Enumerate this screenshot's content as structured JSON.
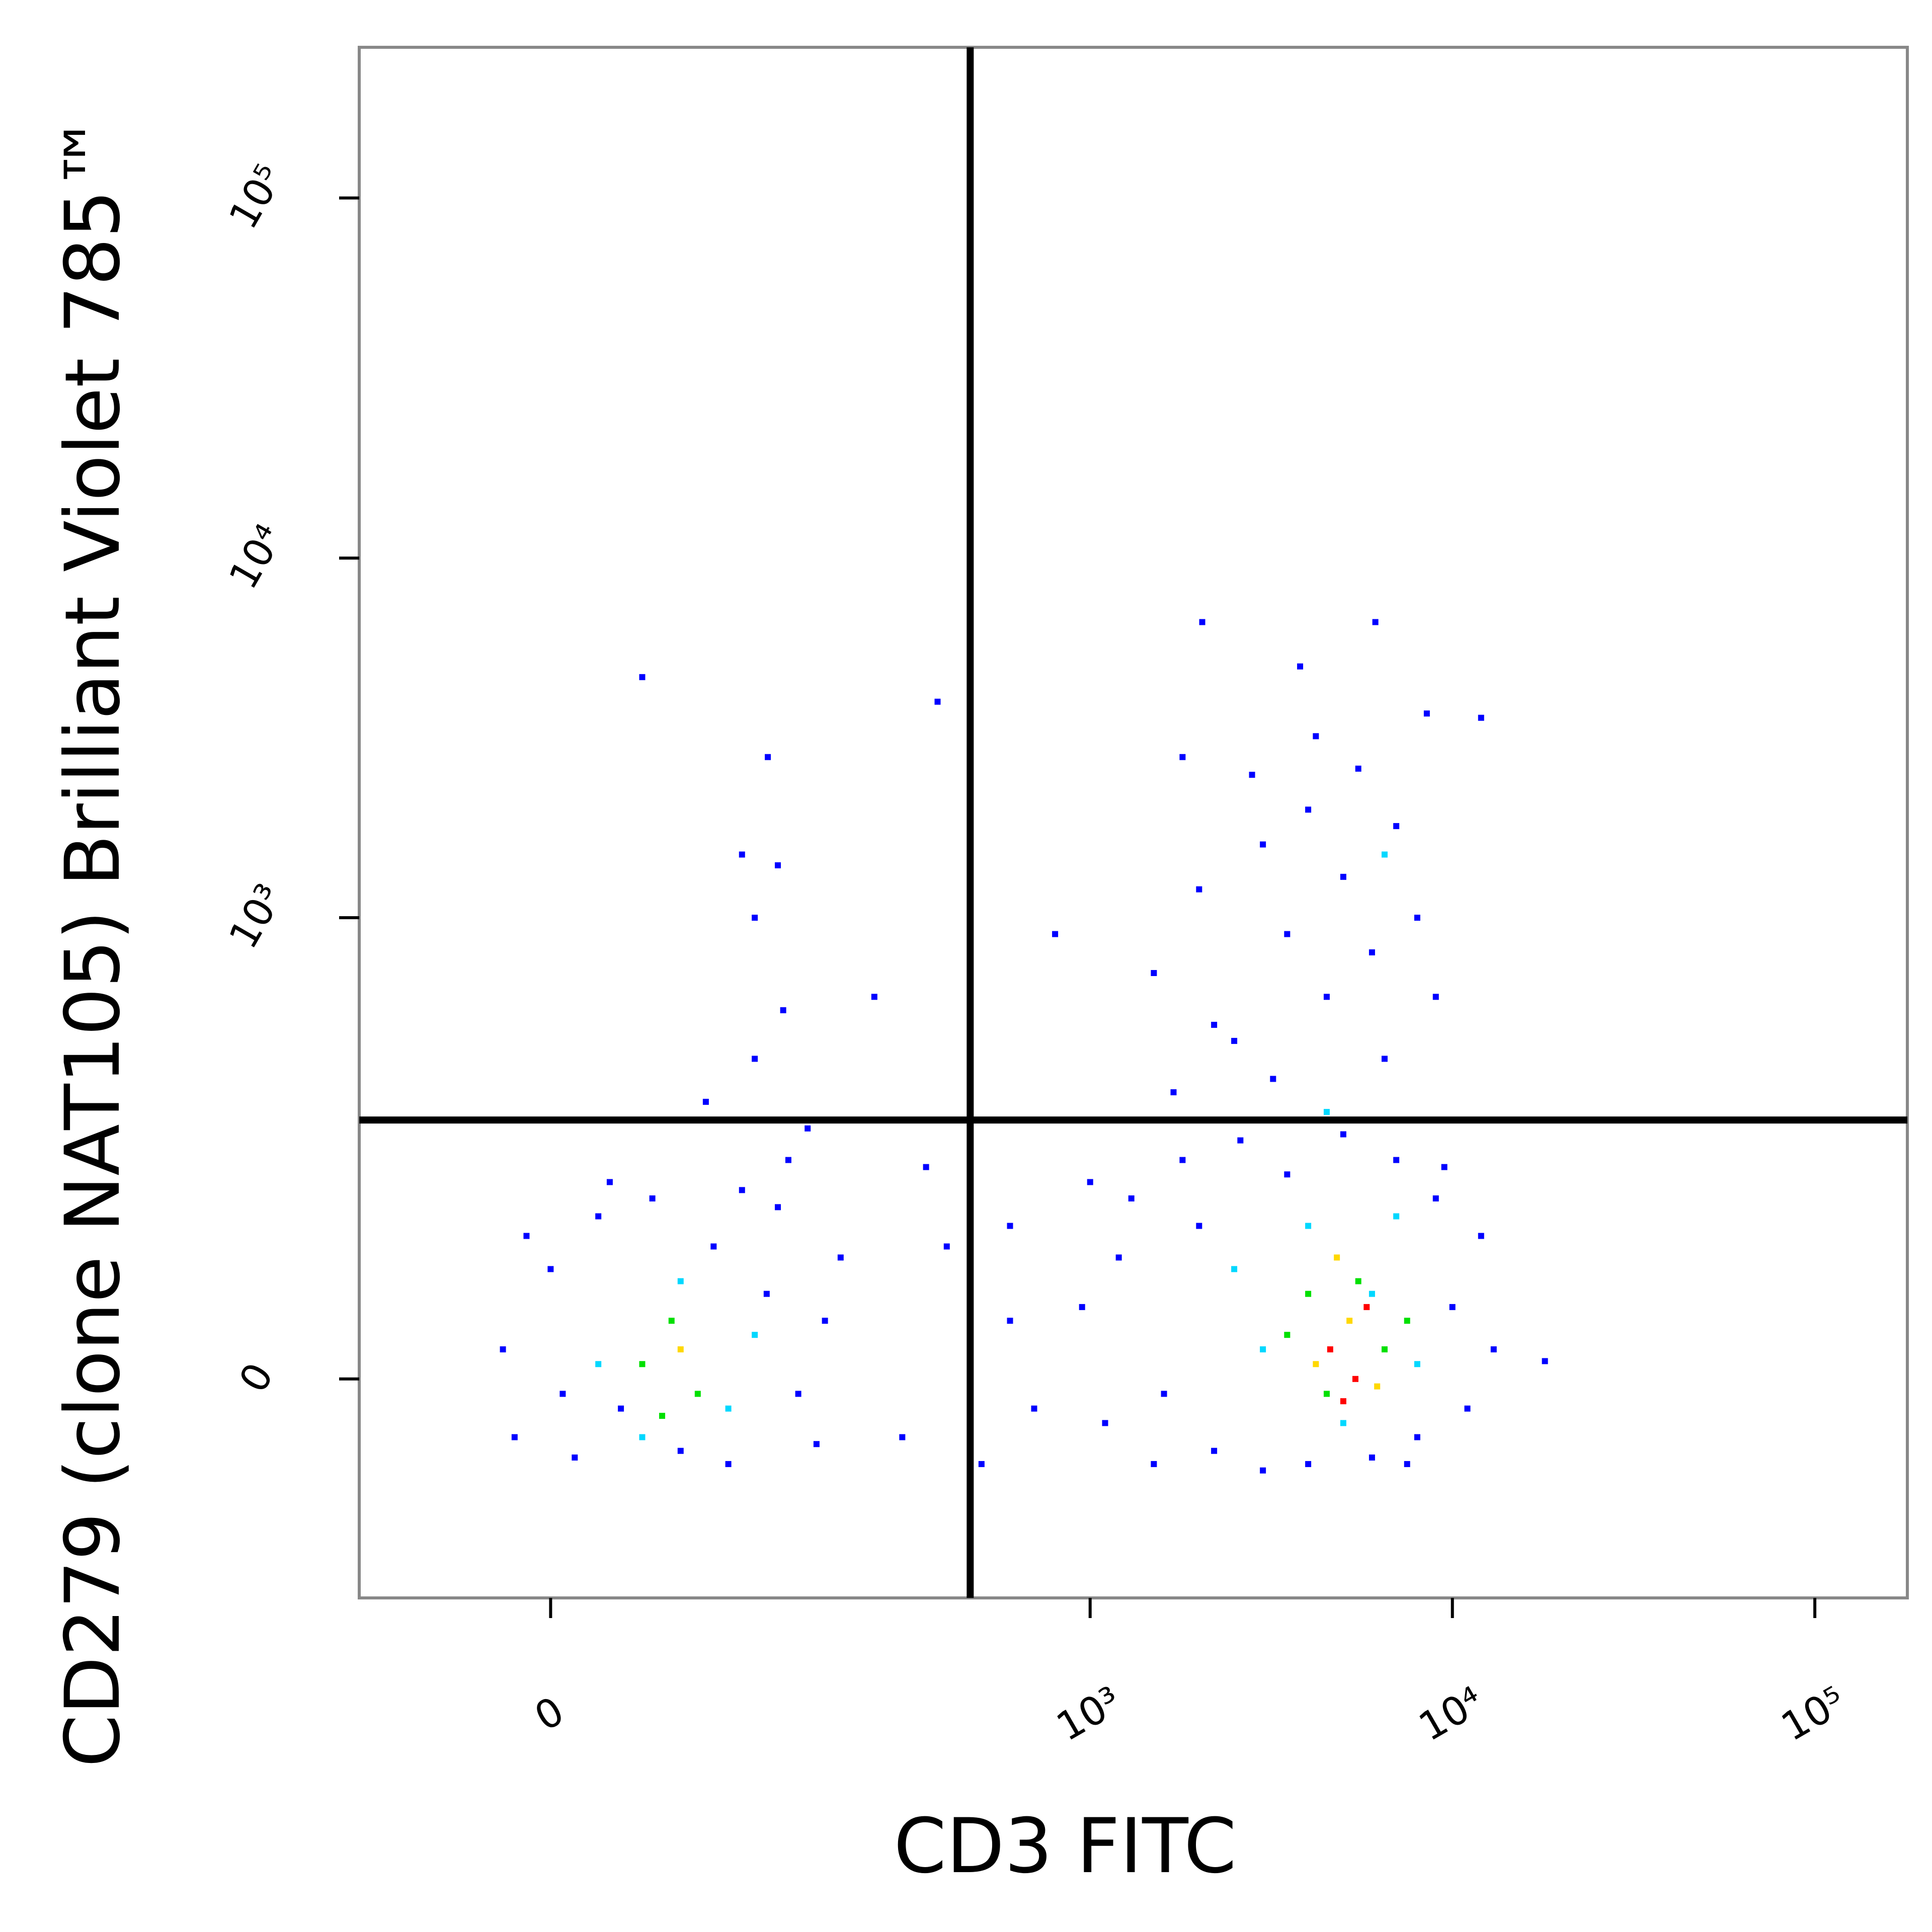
{
  "chart_data": {
    "type": "scatter",
    "x_label": "CD3 FITC",
    "y_label": "CD279 (clone NAT105)  Brilliant Violet 785™",
    "xscale": "biexponential",
    "yscale": "biexponential",
    "xlim": [
      -100,
      180000
    ],
    "ylim": [
      -200,
      262144
    ],
    "xticks": [
      0,
      {
        "value": 1000,
        "label": "10³"
      },
      {
        "value": 10000,
        "label": "10⁴"
      },
      {
        "value": 100000,
        "label": "10⁵"
      }
    ],
    "yticks": [
      0,
      {
        "value": 1000,
        "label": "10³"
      },
      {
        "value": 10000,
        "label": "10⁴"
      },
      {
        "value": 100000,
        "label": "10⁵"
      }
    ],
    "gates": {
      "x": 465,
      "y": 265
    },
    "series": [
      {
        "color": "#0000ff",
        "x": [
          -20,
          -15,
          0,
          10,
          20,
          30,
          45,
          60,
          80,
          100,
          120,
          150,
          180,
          200,
          170,
          -10,
          25,
          90,
          130,
          5,
          140,
          160,
          110,
          135,
          75,
          950,
          1100,
          1300,
          1500,
          1800,
          2200,
          2600,
          3000,
          3500,
          4000,
          5000,
          6000,
          7000,
          8000,
          9000,
          10000,
          11000,
          12000,
          1200,
          1600,
          2000,
          9500,
          13000,
          7500,
          1000,
          18000,
          1500,
          2000,
          2500,
          3000,
          3500,
          4000,
          4500,
          5000,
          6000,
          7000,
          3200,
          2800,
          4200,
          5500,
          8000,
          2200,
          6500,
          1700,
          9000,
          3800,
          300,
          400,
          500,
          600,
          700,
          350,
          250,
          800,
          600,
          40,
          2040,
          6130,
          377,
          121,
          100,
          130,
          110,
          1800,
          8500,
          12000
        ],
        "y": [
          20,
          -40,
          80,
          -55,
          130,
          -20,
          150,
          -50,
          100,
          160,
          60,
          -10,
          40,
          90,
          -45,
          110,
          170,
          -60,
          140,
          -10,
          200,
          250,
          400,
          550,
          300,
          50,
          -30,
          150,
          -60,
          200,
          -50,
          230,
          -65,
          180,
          -60,
          240,
          -55,
          200,
          -40,
          150,
          50,
          -20,
          110,
          90,
          -10,
          120,
          190,
          20,
          -60,
          170,
          12,
          700,
          1200,
          450,
          1600,
          900,
          2000,
          600,
          1300,
          800,
          1800,
          350,
          2500,
          3200,
          2600,
          1000,
          500,
          400,
          320,
          600,
          5000,
          -40,
          100,
          -60,
          40,
          -20,
          190,
          600,
          900,
          120,
          4670,
          6640,
          6640,
          3990,
          2800,
          1500,
          1400,
          1000,
          2800,
          3700,
          3600
        ]
      },
      {
        "color": "#00d8ff",
        "x": [
          20,
          60,
          90,
          40,
          110,
          3000,
          4000,
          6000,
          5000,
          8000,
          2500,
          7000,
          4500,
          6500
        ],
        "y": [
          10,
          70,
          -20,
          -40,
          30,
          20,
          120,
          60,
          -30,
          10,
          80,
          130,
          280,
          1500
        ]
      },
      {
        "color": "#00e000",
        "x": [
          40,
          55,
          70,
          50,
          3500,
          4500,
          5500,
          6500,
          4000,
          7500
        ],
        "y": [
          10,
          40,
          -10,
          -25,
          30,
          -10,
          70,
          20,
          60,
          40
        ]
      },
      {
        "color": "#ffd800",
        "x": [
          60,
          4200,
          5200,
          6200,
          4800
        ],
        "y": [
          20,
          10,
          40,
          -5,
          90
        ]
      },
      {
        "color": "#ff0000",
        "x": [
          4600,
          5400,
          5800,
          5000
        ],
        "y": [
          20,
          0,
          50,
          -15
        ]
      }
    ]
  }
}
